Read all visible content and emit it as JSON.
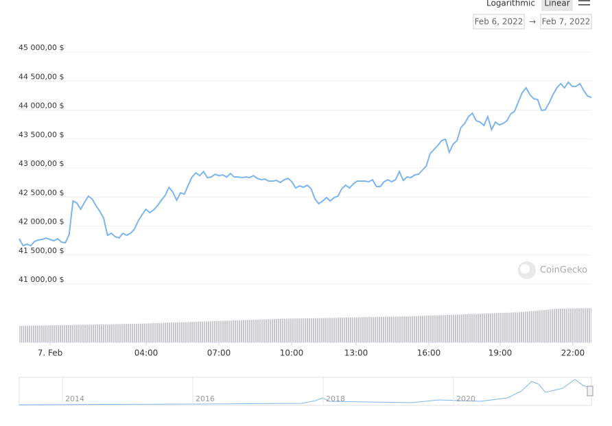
{
  "chart_data": {
    "type": "line",
    "scale_buttons": [
      "Logarithmic",
      "Linear"
    ],
    "active_scale": "Linear",
    "date_range": {
      "from": "Feb 6, 2022",
      "separator": "→",
      "to": "Feb 7, 2022"
    },
    "watermark": "CoinGecko",
    "ylim": [
      41000,
      45000
    ],
    "yticks": [
      {
        "value": 45000,
        "label": "45 000,00 $"
      },
      {
        "value": 44500,
        "label": "44 500,00 $"
      },
      {
        "value": 44000,
        "label": "44 000,00 $"
      },
      {
        "value": 43500,
        "label": "43 500,00 $"
      },
      {
        "value": 43000,
        "label": "43 000,00 $"
      },
      {
        "value": 42500,
        "label": "42 500,00 $"
      },
      {
        "value": 42000,
        "label": "42 000,00 $"
      },
      {
        "value": 41500,
        "label": "41 500,00 $"
      },
      {
        "value": 41000,
        "label": "41 000,00 $"
      }
    ],
    "grid": true,
    "xtick_labels": [
      "7. Feb",
      "04:00",
      "07:00",
      "10:00",
      "13:00",
      "16:00",
      "19:00",
      "22:00"
    ],
    "color": "#7cb5ec",
    "values": [
      41710,
      41590,
      41615,
      41590,
      41663,
      41687,
      41698,
      41722,
      41698,
      41675,
      41710,
      41651,
      41639,
      41781,
      42361,
      42326,
      42219,
      42337,
      42444,
      42397,
      42278,
      42183,
      42065,
      41769,
      41805,
      41746,
      41722,
      41805,
      41769,
      41805,
      41876,
      42018,
      42124,
      42219,
      42160,
      42207,
      42278,
      42373,
      42456,
      42598,
      42515,
      42373,
      42503,
      42479,
      42633,
      42775,
      42846,
      42799,
      42870,
      42763,
      42775,
      42823,
      42799,
      42811,
      42775,
      42834,
      42775,
      42775,
      42763,
      42775,
      42763,
      42799,
      42752,
      42728,
      42740,
      42704,
      42704,
      42716,
      42681,
      42728,
      42752,
      42692,
      42586,
      42621,
      42598,
      42633,
      42574,
      42397,
      42314,
      42361,
      42420,
      42361,
      42420,
      42444,
      42574,
      42633,
      42586,
      42657,
      42704,
      42704,
      42704,
      42692,
      42728,
      42610,
      42610,
      42692,
      42728,
      42692,
      42728,
      42870,
      42716,
      42775,
      42763,
      42811,
      42823,
      42894,
      42965,
      43178,
      43249,
      43320,
      43402,
      43426,
      43201,
      43343,
      43402,
      43627,
      43698,
      43817,
      43876,
      43746,
      43722,
      43663,
      43817,
      43592,
      43722,
      43675,
      43698,
      43746,
      43864,
      43911,
      44077,
      44231,
      44314,
      44195,
      44124,
      44112,
      43923,
      43935,
      44053,
      44195,
      44314,
      44385,
      44314,
      44408,
      44337,
      44337,
      44385,
      44266,
      44172,
      44148
    ],
    "navigator": {
      "labels": [
        "2014",
        "2016",
        "2018",
        "2020"
      ]
    }
  }
}
